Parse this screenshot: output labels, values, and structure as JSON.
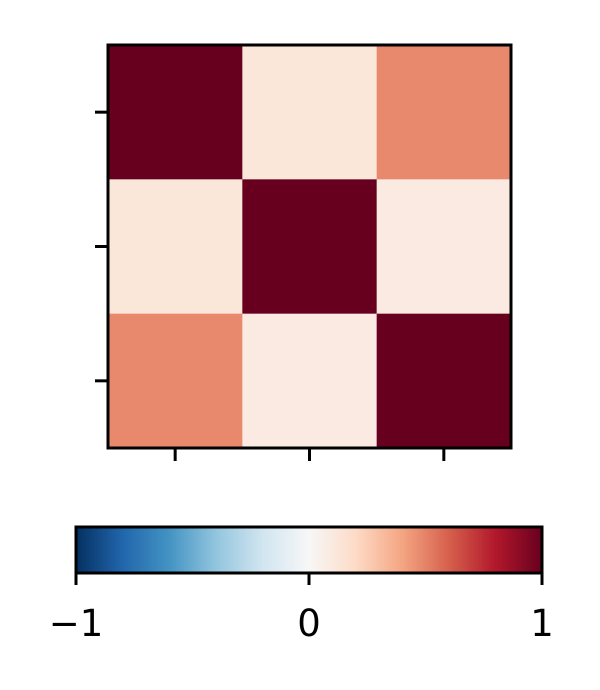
{
  "chart_data": {
    "type": "heatmap",
    "title": "",
    "xlabel": "",
    "ylabel": "",
    "rows": 3,
    "cols": 3,
    "values": [
      [
        1.0,
        0.12,
        0.48
      ],
      [
        0.12,
        1.0,
        0.09
      ],
      [
        0.48,
        0.09,
        1.0
      ]
    ],
    "x_tick_labels": [
      "",
      "",
      ""
    ],
    "y_tick_labels": [
      "",
      "",
      ""
    ],
    "colormap": "RdBu_r",
    "colorbar": {
      "orientation": "horizontal",
      "placement": "bottom",
      "vmin": -1,
      "vmax": 1,
      "ticks": [
        -1,
        0,
        1
      ],
      "tick_labels": [
        "−1",
        "0",
        "1"
      ]
    }
  },
  "colors": {
    "ramp": [
      "#053061",
      "#2166ac",
      "#4393c3",
      "#92c5de",
      "#d1e5f0",
      "#f7f7f7",
      "#fddbc7",
      "#f4a582",
      "#d6604d",
      "#b2182b",
      "#67001f"
    ],
    "frame": "#000000"
  }
}
